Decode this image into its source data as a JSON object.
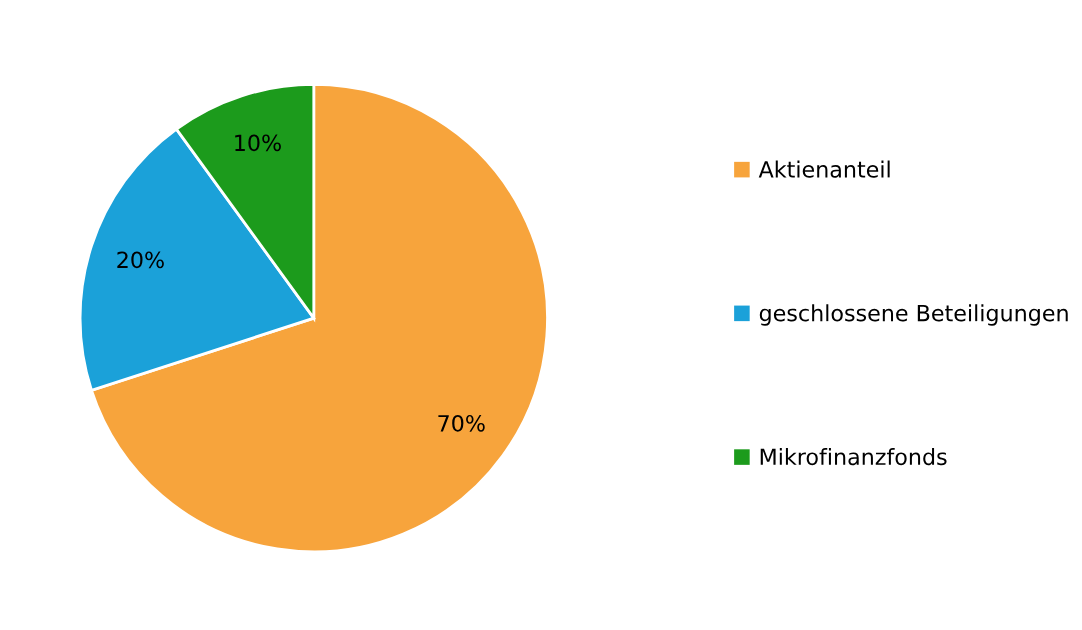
{
  "chart_data": {
    "type": "pie",
    "categories": [
      "Aktienanteil",
      "geschlossene Beteiligungen",
      "Mikrofinanzfonds"
    ],
    "values": [
      70,
      20,
      10
    ],
    "colors": [
      "#f7a43c",
      "#1ba1d9",
      "#1c9b1c"
    ],
    "value_labels": [
      "70%",
      "20%",
      "10%"
    ],
    "legend": "right"
  }
}
